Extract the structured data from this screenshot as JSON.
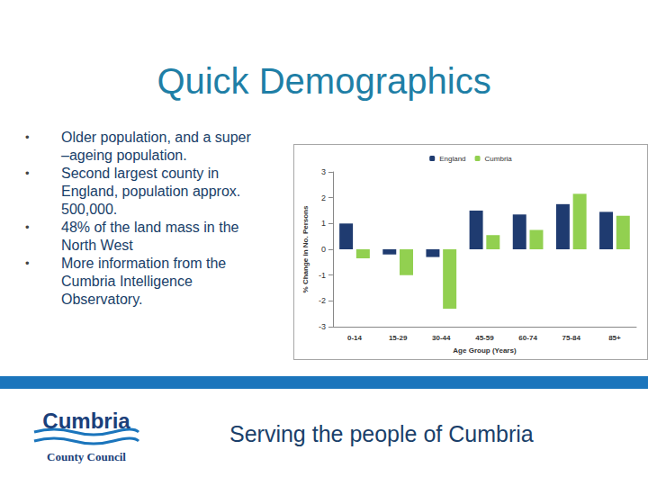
{
  "slide": {
    "title": "Quick Demographics",
    "bullets": [
      "Older population, and a super –ageing population.",
      "Second largest county in England, population approx. 500,000.",
      "48% of the land mass in the North West",
      "More information from the Cumbria Intelligence Observatory."
    ],
    "footer": "Serving the people of Cumbria",
    "logo": {
      "name": "Cumbria",
      "subtitle": "County Council"
    }
  },
  "chart_data": {
    "type": "bar",
    "categories": [
      "0-14",
      "15-29",
      "30-44",
      "45-59",
      "60-74",
      "75-84",
      "85+"
    ],
    "series": [
      {
        "name": "England",
        "color": "#1f3b70",
        "values": [
          1.0,
          -0.2,
          -0.3,
          1.5,
          1.35,
          1.75,
          1.45
        ]
      },
      {
        "name": "Cumbria",
        "color": "#92d050",
        "values": [
          -0.35,
          -1.0,
          -2.3,
          0.55,
          0.75,
          2.15,
          1.3
        ]
      }
    ],
    "x_label": "Age Group (Years)",
    "y_label": "% Change in No. Persons",
    "ylim": [
      -3,
      3
    ],
    "yticks": [
      -3,
      -2,
      -1,
      0,
      1,
      2,
      3
    ],
    "grid": false,
    "legend": "top"
  }
}
